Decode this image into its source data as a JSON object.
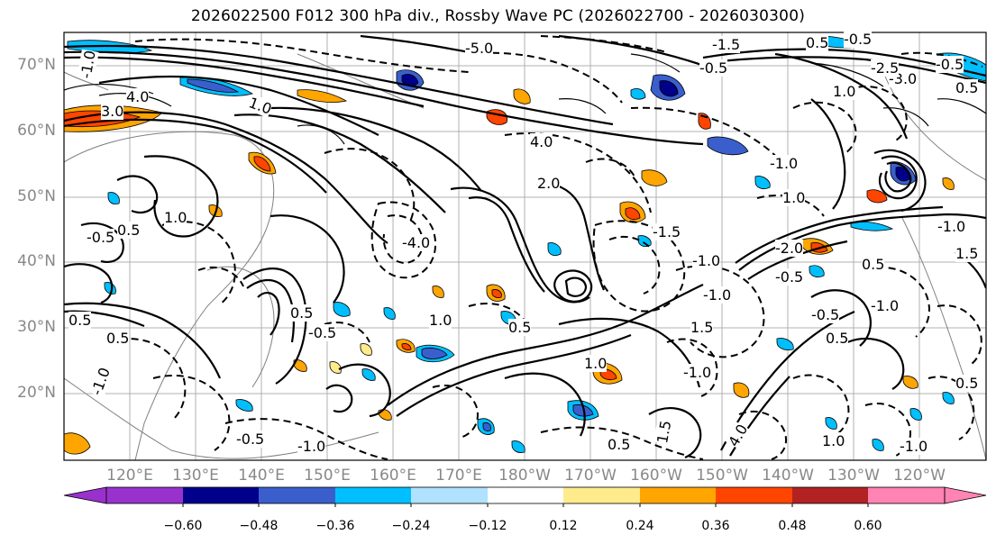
{
  "title": "2026022500 F012 300 hPa div., Rossby Wave PC (2026022700 - 2026030300)",
  "lat_labels": [
    "70°N",
    "60°N",
    "50°N",
    "40°N",
    "30°N",
    "20°N"
  ],
  "lon_labels": [
    "120°E",
    "130°E",
    "140°E",
    "150°E",
    "160°E",
    "170°E",
    "180°W",
    "170°W",
    "160°W",
    "150°W",
    "140°W",
    "130°W",
    "120°W"
  ],
  "contour_labels": [
    "-1.0",
    "3.0",
    "4.0",
    "1.0",
    "-5.0",
    "-1.5",
    "-0.5",
    "0.5",
    "-0.5",
    "4.0",
    "1.0",
    "-3.0",
    "-1.0",
    "2.0",
    "-4.0",
    "1.0",
    "0.5",
    "-1.0",
    "-1.5",
    "-1.0",
    "-0.5",
    "0.5",
    "1.0",
    "-2.0",
    "0.5",
    "-0.5",
    "0.5",
    "1.0",
    "1.5",
    "-0.5",
    "0.5",
    "0.5",
    "-0.5",
    "0.5",
    "-1.0",
    "-1.0",
    "1.0",
    "-1.0",
    "0.5",
    "-0.5",
    "-1.0",
    "0.5",
    "1.0",
    "-1.0",
    "1.5",
    "4.0",
    "-2.5",
    "-0.5",
    "-1.0",
    "0.5",
    "1.5"
  ],
  "colorbar": {
    "ticks": [
      "−0.60",
      "−0.48",
      "−0.36",
      "−0.24",
      "−0.12",
      "0.12",
      "0.24",
      "0.36",
      "0.48",
      "0.60"
    ],
    "colors": [
      "#9932cc",
      "#00008b",
      "#3a5fcd",
      "#00bfff",
      "#b0e2ff",
      "#ffffff",
      "#ffeb8c",
      "#ffa500",
      "#ff4500",
      "#b22222",
      "#ff83b3"
    ]
  },
  "fill_colors": {
    "light_blue": "#b0e2ff",
    "cyan": "#00bfff",
    "blue": "#3a5fcd",
    "navy": "#00008b",
    "yellow": "#ffeb8c",
    "orange": "#ffa500",
    "red_orange": "#ff4500"
  }
}
